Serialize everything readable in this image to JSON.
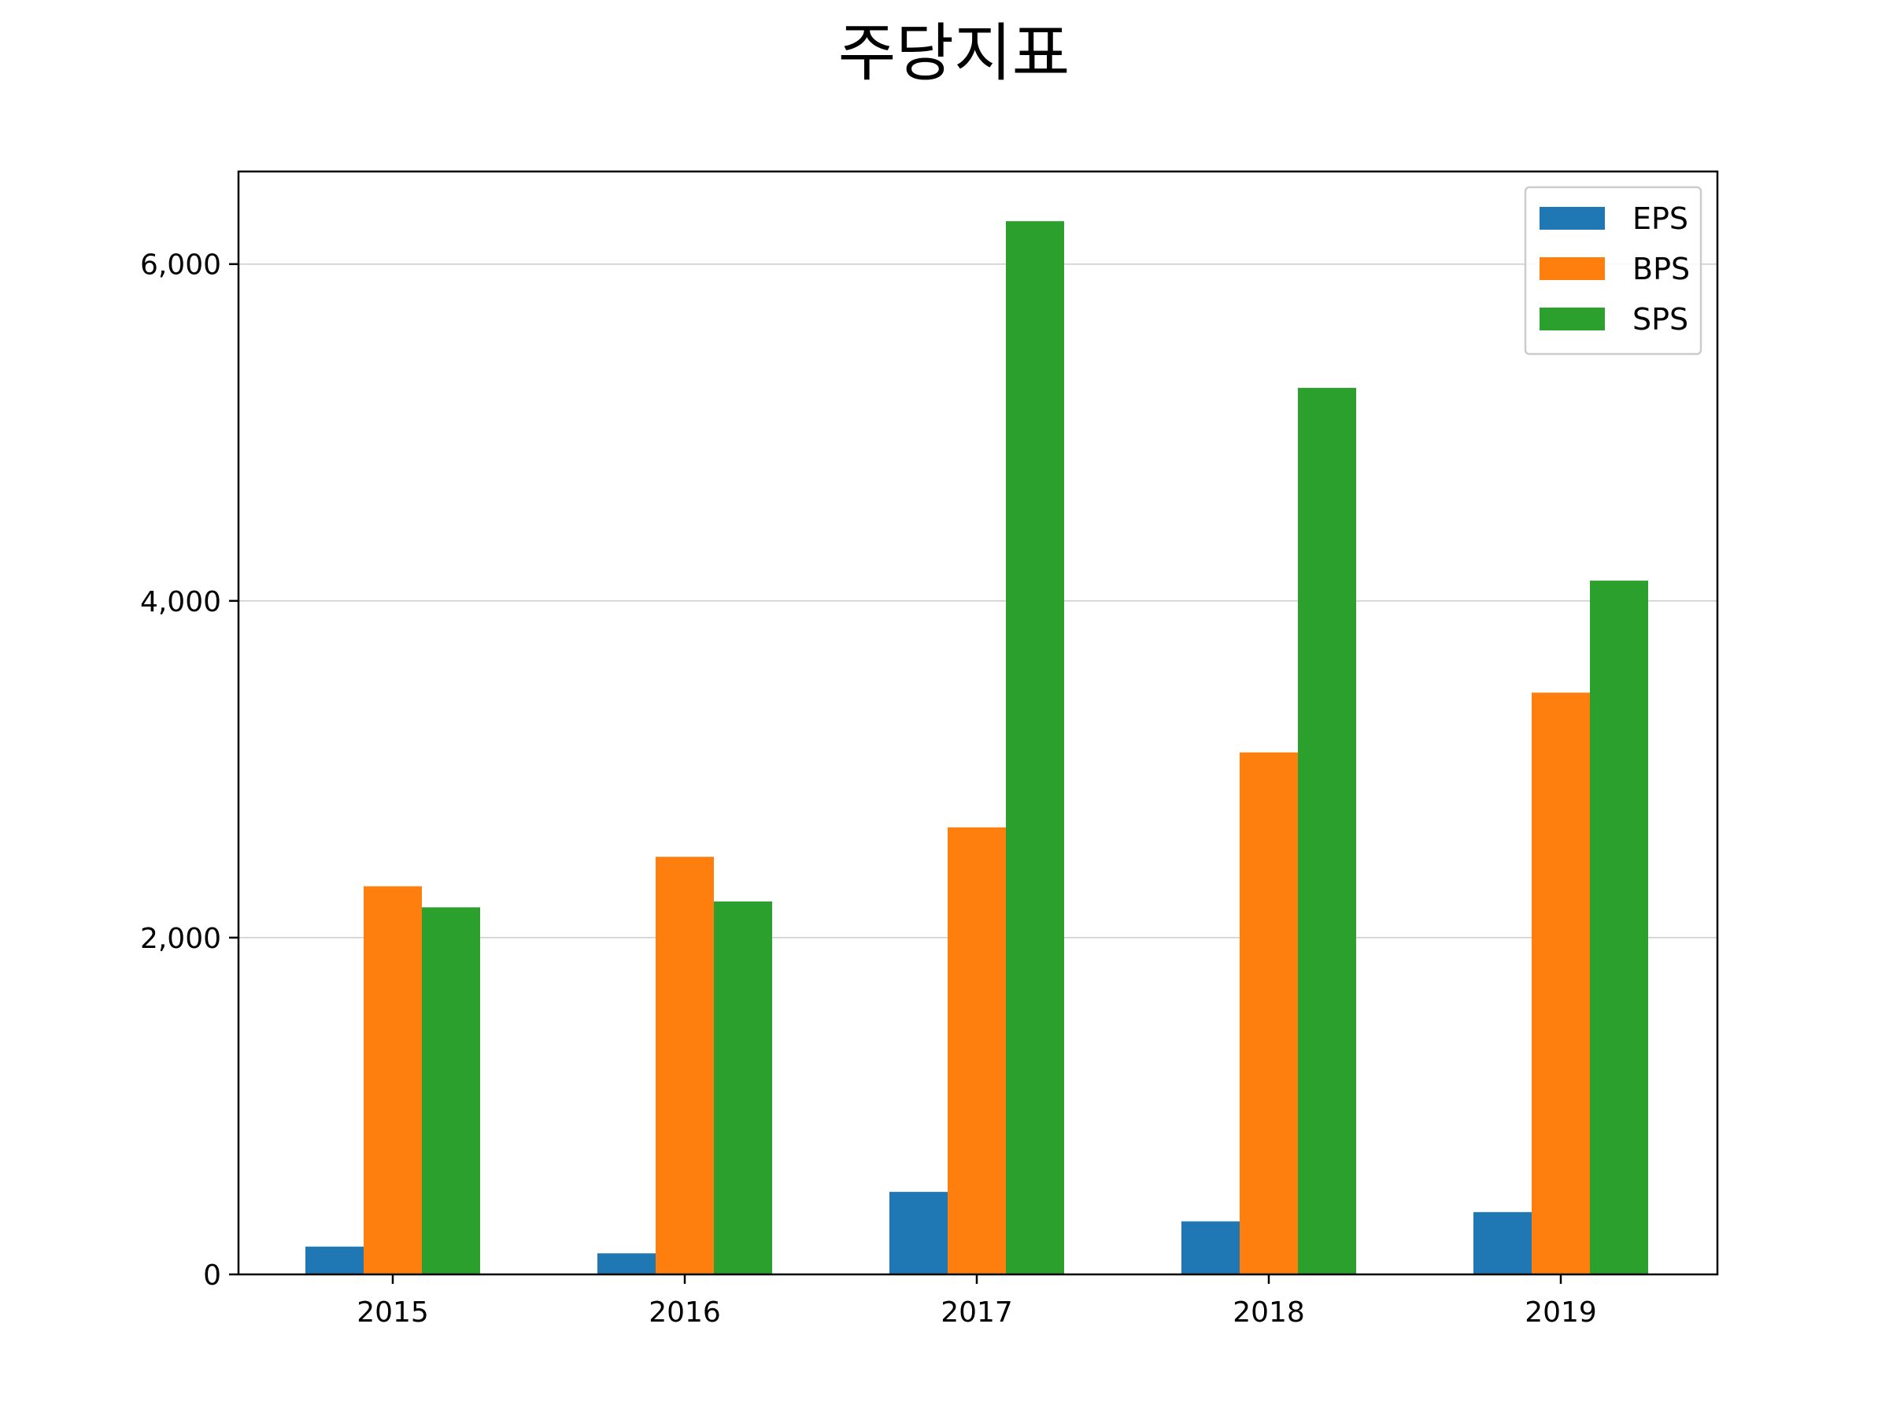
{
  "chart_data": {
    "type": "bar",
    "title": "주당지표",
    "xlabel": "",
    "ylabel": "",
    "categories": [
      "2015",
      "2016",
      "2017",
      "2018",
      "2019"
    ],
    "series": [
      {
        "name": "EPS",
        "color": "#1f77b4",
        "values": [
          165,
          125,
          490,
          315,
          370
        ]
      },
      {
        "name": "BPS",
        "color": "#ff7f0e",
        "values": [
          2305,
          2480,
          2655,
          3100,
          3455
        ]
      },
      {
        "name": "SPS",
        "color": "#2ca02c",
        "values": [
          2180,
          2215,
          6255,
          5265,
          4120
        ]
      }
    ],
    "ylim": [
      0,
      6550
    ],
    "yticks": [
      0,
      2000,
      4000,
      6000
    ],
    "ytick_labels": [
      "0",
      "2,000",
      "4,000",
      "6,000"
    ],
    "grid": {
      "y": true,
      "x": false,
      "color": "#cccccc"
    },
    "legend": {
      "placement": "top-right"
    }
  }
}
